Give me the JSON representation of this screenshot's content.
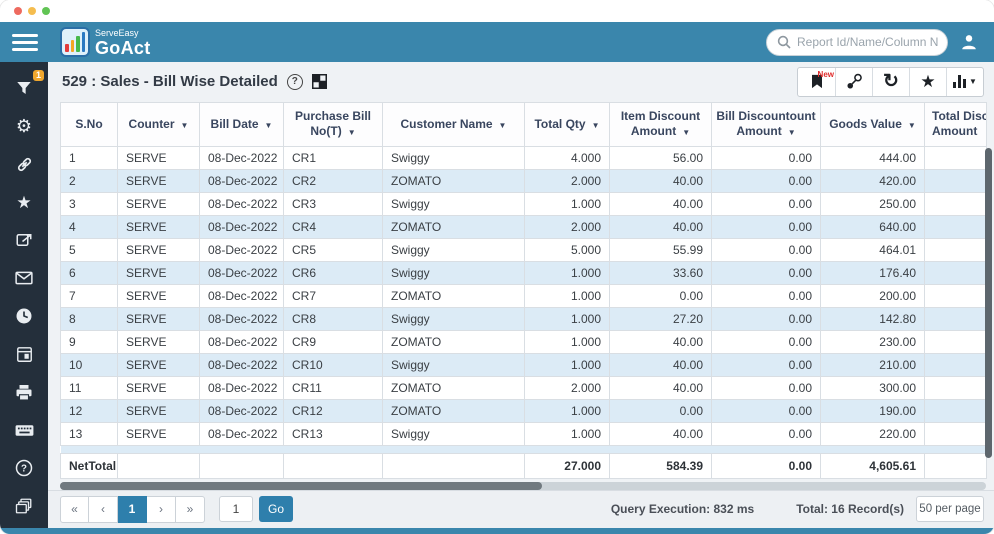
{
  "titlebar": {
    "dots": [
      "#ee6a5f",
      "#f5bd4f",
      "#61c454"
    ]
  },
  "appbar": {
    "brand_top": "ServeEasy",
    "brand_bottom": "GoAct",
    "search_placeholder": "Report Id/Name/Column N"
  },
  "sidebar": {
    "filter_badge": "1"
  },
  "toolbar": {
    "title": "529 : Sales - Bill Wise Detailed",
    "new_badge": "New"
  },
  "table": {
    "columns": [
      {
        "key": "sno",
        "label": "S.No",
        "filter": false
      },
      {
        "key": "counter",
        "label": "Counter",
        "filter": true
      },
      {
        "key": "bill-date",
        "label": "Bill Date",
        "filter": true
      },
      {
        "key": "purchase-bill-no",
        "label": "Purchase Bill No(T)",
        "filter": true
      },
      {
        "key": "customer-name",
        "label": "Customer Name",
        "filter": true
      },
      {
        "key": "total-qty",
        "label": "Total Qty",
        "filter": true
      },
      {
        "key": "item-discount-amount",
        "label": "Item Discount Amount",
        "filter": true
      },
      {
        "key": "bill-discountount-amount",
        "label": "Bill Discountount Amount",
        "filter": true
      },
      {
        "key": "goods-value",
        "label": "Goods Value",
        "filter": true
      },
      {
        "key": "total-discount-amount",
        "label": "Total Discount Amount",
        "filter": true,
        "clipped": true
      }
    ],
    "rows": [
      [
        "1",
        "SERVE",
        "08-Dec-2022",
        "CR1",
        "Swiggy",
        "4.000",
        "56.00",
        "0.00",
        "444.00",
        ""
      ],
      [
        "2",
        "SERVE",
        "08-Dec-2022",
        "CR2",
        "ZOMATO",
        "2.000",
        "40.00",
        "0.00",
        "420.00",
        ""
      ],
      [
        "3",
        "SERVE",
        "08-Dec-2022",
        "CR3",
        "Swiggy",
        "1.000",
        "40.00",
        "0.00",
        "250.00",
        ""
      ],
      [
        "4",
        "SERVE",
        "08-Dec-2022",
        "CR4",
        "ZOMATO",
        "2.000",
        "40.00",
        "0.00",
        "640.00",
        ""
      ],
      [
        "5",
        "SERVE",
        "08-Dec-2022",
        "CR5",
        "Swiggy",
        "5.000",
        "55.99",
        "0.00",
        "464.01",
        ""
      ],
      [
        "6",
        "SERVE",
        "08-Dec-2022",
        "CR6",
        "Swiggy",
        "1.000",
        "33.60",
        "0.00",
        "176.40",
        ""
      ],
      [
        "7",
        "SERVE",
        "08-Dec-2022",
        "CR7",
        "ZOMATO",
        "1.000",
        "0.00",
        "0.00",
        "200.00",
        ""
      ],
      [
        "8",
        "SERVE",
        "08-Dec-2022",
        "CR8",
        "Swiggy",
        "1.000",
        "27.20",
        "0.00",
        "142.80",
        ""
      ],
      [
        "9",
        "SERVE",
        "08-Dec-2022",
        "CR9",
        "ZOMATO",
        "1.000",
        "40.00",
        "0.00",
        "230.00",
        ""
      ],
      [
        "10",
        "SERVE",
        "08-Dec-2022",
        "CR10",
        "Swiggy",
        "1.000",
        "40.00",
        "0.00",
        "210.00",
        ""
      ],
      [
        "11",
        "SERVE",
        "08-Dec-2022",
        "CR11",
        "ZOMATO",
        "2.000",
        "40.00",
        "0.00",
        "300.00",
        ""
      ],
      [
        "12",
        "SERVE",
        "08-Dec-2022",
        "CR12",
        "ZOMATO",
        "1.000",
        "0.00",
        "0.00",
        "190.00",
        ""
      ],
      [
        "13",
        "SERVE",
        "08-Dec-2022",
        "CR13",
        "Swiggy",
        "1.000",
        "40.00",
        "0.00",
        "220.00",
        ""
      ]
    ],
    "net_total": [
      "NetTotal",
      "",
      "",
      "",
      "",
      "27.000",
      "584.39",
      "0.00",
      "4,605.61",
      ""
    ]
  },
  "footer": {
    "pagination": {
      "first": "«",
      "prev": "‹",
      "page": "1",
      "next": "›",
      "last": "»"
    },
    "goto_value": "1",
    "go_label": "Go",
    "query_execution": "Query Execution: 832 ms",
    "total_records": "Total: 16 Record(s)",
    "per_page": "50 per page"
  },
  "colors": {
    "accent_teal": "#3a86ac",
    "sidebar_dark": "#242f3b",
    "row_alt_blue": "#dcebf6",
    "active_blue": "#2e7fac",
    "badge_orange": "#f0a72e",
    "new_red": "#e02b2b"
  }
}
